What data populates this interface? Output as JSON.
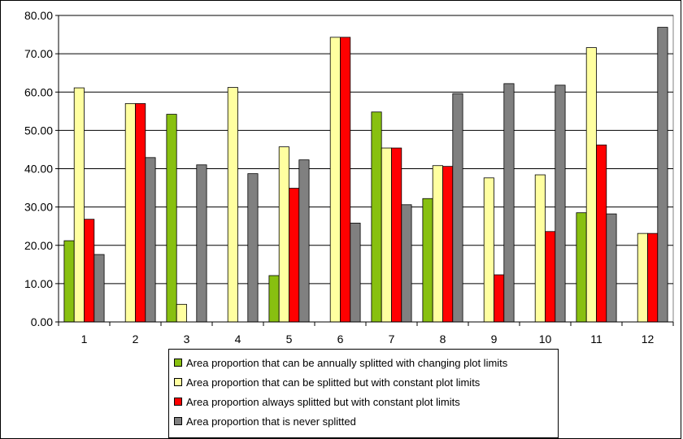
{
  "chart_data": {
    "type": "bar",
    "categories": [
      "1",
      "2",
      "3",
      "4",
      "5",
      "6",
      "7",
      "8",
      "9",
      "10",
      "11",
      "12"
    ],
    "ylim": [
      0,
      80
    ],
    "yticks": [
      "0.00",
      "10.00",
      "20.00",
      "30.00",
      "40.00",
      "50.00",
      "60.00",
      "70.00",
      "80.00"
    ],
    "grid": true,
    "legend_position": "bottom",
    "series": [
      {
        "name": "Area proportion that can be annually splitted with changing plot limits",
        "color": "#88c010",
        "values": [
          21.2,
          0,
          54.2,
          0,
          12.1,
          0,
          54.8,
          32.2,
          0,
          0,
          28.5,
          0
        ]
      },
      {
        "name": "Area proportion that can be splitted but with constant plot limits",
        "color": "#ffffa0",
        "values": [
          61.1,
          57.0,
          4.6,
          61.2,
          45.7,
          74.3,
          45.4,
          40.8,
          37.6,
          38.4,
          71.6,
          23.1
        ]
      },
      {
        "name": "Area proportion always splitted but with constant plot limits",
        "color": "#ff0000",
        "values": [
          26.8,
          57.0,
          0,
          0,
          34.9,
          74.3,
          45.4,
          40.6,
          12.3,
          23.6,
          46.2,
          23.1
        ]
      },
      {
        "name": "Area proportion that is never splitted",
        "color": "#808080",
        "values": [
          17.6,
          42.9,
          41.0,
          38.7,
          42.3,
          25.8,
          30.6,
          59.6,
          62.2,
          61.8,
          28.2,
          76.9
        ]
      }
    ]
  }
}
